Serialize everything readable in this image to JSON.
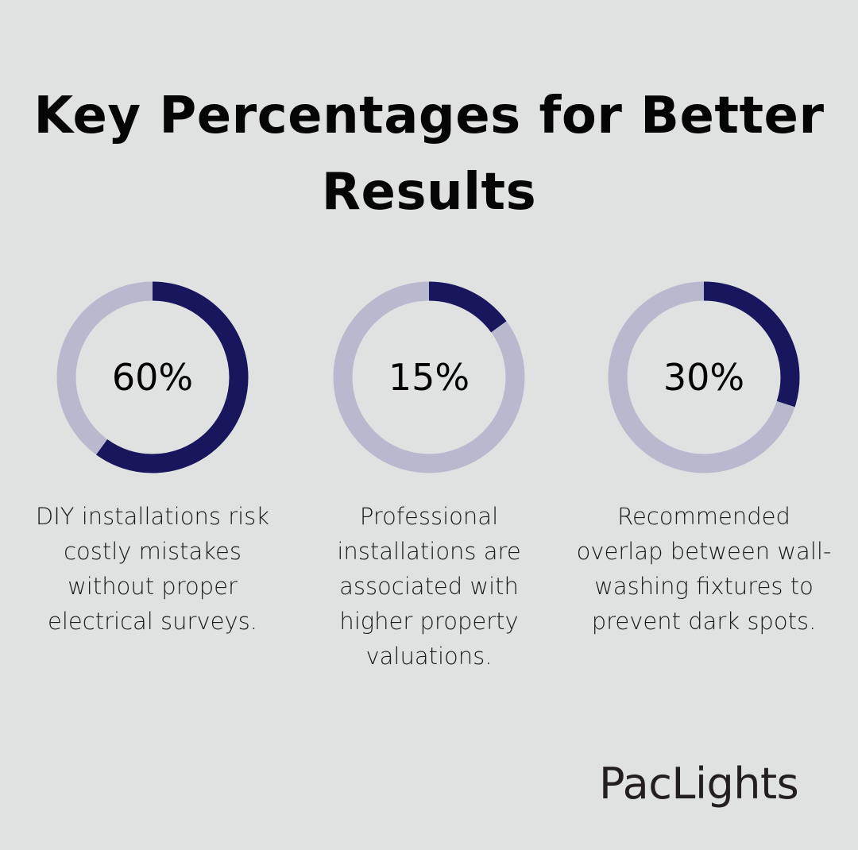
{
  "title": "Key Percentages for Better Results",
  "chart_data": [
    {
      "type": "pie",
      "variant": "donut",
      "value": 60,
      "label": "60%",
      "description": "DIY installations risk costly mistakes without proper electrical surveys."
    },
    {
      "type": "pie",
      "variant": "donut",
      "value": 15,
      "label": "15%",
      "description": "Professional installations are associated with higher property valuations."
    },
    {
      "type": "pie",
      "variant": "donut",
      "value": 30,
      "label": "30%",
      "description": "Recommended overlap between wall-washing fixtures to prevent dark spots."
    }
  ],
  "colors": {
    "filled": "#18175e",
    "track": "#b8b9cf",
    "background": "#e0e2e1"
  },
  "logo": "PacLights"
}
